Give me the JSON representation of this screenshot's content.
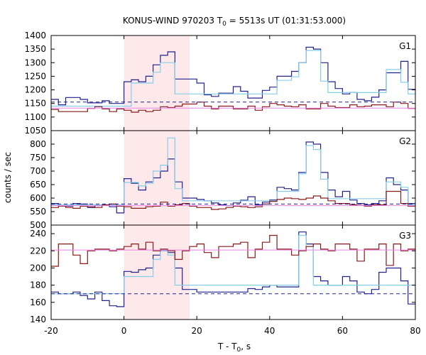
{
  "title": {
    "prefix": "KONUS-WIND 970203 T",
    "subscript": "0",
    "suffix": " = 5513s UT (01:31:53.000)"
  },
  "xlabel": {
    "prefix": "T - T",
    "subscript": "0",
    "suffix": ", s"
  },
  "ylabel": "counts / sec",
  "chart_data": {
    "type": "line",
    "xlim": [
      -20,
      80
    ],
    "x_ticks": [
      "-20",
      "0",
      "20",
      "40",
      "60",
      "80"
    ],
    "shaded_interval": [
      0,
      18
    ],
    "shade_color": "#fde8ea",
    "bin_edges": [
      -20,
      -18,
      -16,
      -14,
      -12,
      -10,
      -8,
      -6,
      -4,
      -2,
      0,
      2,
      4,
      6,
      8,
      10,
      12,
      14,
      16,
      18,
      20,
      22,
      24,
      26,
      28,
      30,
      32,
      34,
      36,
      38,
      40,
      42,
      44,
      46,
      48,
      50,
      52,
      54,
      56,
      58,
      60,
      62,
      64,
      66,
      68,
      70,
      72,
      74,
      76,
      78,
      80
    ],
    "panels": [
      {
        "label": "G1",
        "ylim": [
          1050,
          1400
        ],
        "y_ticks": [
          "1050",
          "1100",
          "1150",
          "1200",
          "1250",
          "1300",
          "1350",
          "1400"
        ],
        "series": [
          {
            "color": "#22228f",
            "style": "step",
            "values": [
              1165,
              1145,
              1172,
              1172,
              1165,
              1152,
              1152,
              1160,
              1150,
              1150,
              1230,
              1237,
              1230,
              1250,
              1292,
              1327,
              1340,
              1240,
              1240,
              1240,
              1225,
              1182,
              1176,
              1188,
              1188,
              1212,
              1195,
              1170,
              1170,
              1198,
              1210,
              1250,
              1250,
              1268,
              1300,
              1357,
              1350,
              1300,
              1230,
              1205,
              1185,
              1190,
              1165,
              1160,
              1173,
              1200,
              1263,
              1263,
              1305,
              1202
            ]
          },
          {
            "color": "#87ceeb",
            "style": "step",
            "values": [
              1140,
              1140,
              1140,
              1140,
              1140,
              1140,
              1140,
              1140,
              1140,
              1140,
              1140,
              1225,
              1225,
              1225,
              1265,
              1300,
              1300,
              1185,
              1185,
              1185,
              1185,
              1185,
              1185,
              1185,
              1185,
              1185,
              1185,
              1185,
              1185,
              1185,
              1185,
              1235,
              1235,
              1248,
              1300,
              1345,
              1345,
              1232,
              1190,
              1190,
              1190,
              1190,
              1190,
              1190,
              1190,
              1190,
              1275,
              1275,
              1228,
              1185
            ]
          },
          {
            "color": "#8b1a1a",
            "style": "step",
            "values": [
              1128,
              1120,
              1120,
              1120,
              1120,
              1132,
              1138,
              1130,
              1120,
              1130,
              1125,
              1118,
              1125,
              1120,
              1125,
              1138,
              1135,
              1140,
              1148,
              1148,
              1155,
              1140,
              1130,
              1140,
              1140,
              1130,
              1130,
              1140,
              1125,
              1138,
              1150,
              1145,
              1140,
              1138,
              1145,
              1130,
              1130,
              1150,
              1140,
              1135,
              1135,
              1145,
              1138,
              1140,
              1145,
              1145,
              1138,
              1155,
              1150,
              1132
            ]
          },
          {
            "color": "#22228f",
            "style": "dashed",
            "level": 1155
          },
          {
            "color": "#ee82ee",
            "style": "flat",
            "level": 1133
          }
        ]
      },
      {
        "label": "G2",
        "ylim": [
          500,
          850
        ],
        "y_ticks": [
          "500",
          "550",
          "600",
          "650",
          "700",
          "750",
          "800"
        ],
        "series": [
          {
            "color": "#22228f",
            "style": "step",
            "values": [
              580,
              570,
              570,
              580,
              578,
              565,
              572,
              573,
              568,
              545,
              672,
              655,
              630,
              660,
              675,
              700,
              745,
              660,
              600,
              600,
              595,
              590,
              582,
              575,
              572,
              582,
              592,
              605,
              575,
              585,
              593,
              640,
              635,
              630,
              695,
              808,
              800,
              695,
              630,
              605,
              625,
              593,
              580,
              575,
              580,
              590,
              675,
              650,
              630,
              580
            ]
          },
          {
            "color": "#87ceeb",
            "style": "step",
            "values": [
              575,
              575,
              575,
              575,
              575,
              575,
              575,
              575,
              575,
              575,
              658,
              658,
              645,
              655,
              700,
              722,
              823,
              635,
              590,
              590,
              590,
              590,
              590,
              590,
              590,
              590,
              590,
              590,
              590,
              590,
              590,
              625,
              625,
              625,
              690,
              795,
              780,
              670,
              598,
              598,
              598,
              598,
              598,
              598,
              598,
              598,
              660,
              660,
              640,
              575
            ]
          },
          {
            "color": "#8b1a1a",
            "style": "step",
            "values": [
              565,
              570,
              565,
              562,
              570,
              568,
              565,
              575,
              578,
              570,
              568,
              562,
              562,
              568,
              570,
              585,
              570,
              575,
              580,
              570,
              565,
              565,
              558,
              560,
              565,
              570,
              568,
              565,
              568,
              578,
              588,
              595,
              600,
              598,
              595,
              600,
              608,
              600,
              590,
              580,
              580,
              575,
              573,
              570,
              575,
              575,
              625,
              625,
              580,
              570
            ]
          },
          {
            "color": "#22228f",
            "style": "dashed",
            "level": 578
          },
          {
            "color": "#ee82ee",
            "style": "flat",
            "level": 572
          }
        ]
      },
      {
        "label": "G3",
        "ylim": [
          140,
          250
        ],
        "y_ticks": [
          "140",
          "160",
          "180",
          "200",
          "220",
          "240"
        ],
        "series": [
          {
            "color": "#22228f",
            "style": "step",
            "values": [
              172,
              170,
              170,
              172,
              168,
              164,
              172,
              162,
              156,
              155,
              196,
              195,
              198,
              200,
              215,
              220,
              218,
              200,
              175,
              175,
              172,
              172,
              172,
              172,
              172,
              172,
              172,
              176,
              175,
              178,
              180,
              178,
              178,
              178,
              242,
              228,
              190,
              185,
              180,
              180,
              190,
              185,
              172,
              170,
              175,
              195,
              200,
              200,
              185,
              158
            ]
          },
          {
            "color": "#87ceeb",
            "style": "step",
            "values": [
              170,
              170,
              170,
              170,
              170,
              170,
              170,
              170,
              170,
              170,
              190,
              190,
              190,
              190,
              210,
              220,
              215,
              180,
              180,
              180,
              180,
              180,
              180,
              180,
              180,
              180,
              180,
              180,
              180,
              180,
              180,
              180,
              180,
              180,
              238,
              225,
              180,
              180,
              180,
              180,
              180,
              180,
              180,
              180,
              180,
              180,
              180,
              180,
              180,
              180
            ]
          },
          {
            "color": "#8b1a1a",
            "style": "step",
            "values": [
              202,
              228,
              228,
              215,
              205,
              220,
              222,
              222,
              220,
              222,
              225,
              228,
              222,
              230,
              220,
              222,
              220,
              210,
              220,
              225,
              228,
              218,
              212,
              225,
              225,
              228,
              230,
              212,
              222,
              230,
              238,
              222,
              222,
              215,
              220,
              225,
              228,
              222,
              220,
              228,
              228,
              222,
              208,
              222,
              222,
              228,
              203,
              228,
              220,
              222
            ]
          },
          {
            "color": "#22228f",
            "style": "dashed",
            "level": 170
          },
          {
            "color": "#ee82ee",
            "style": "flat",
            "level": 221
          }
        ]
      }
    ]
  }
}
